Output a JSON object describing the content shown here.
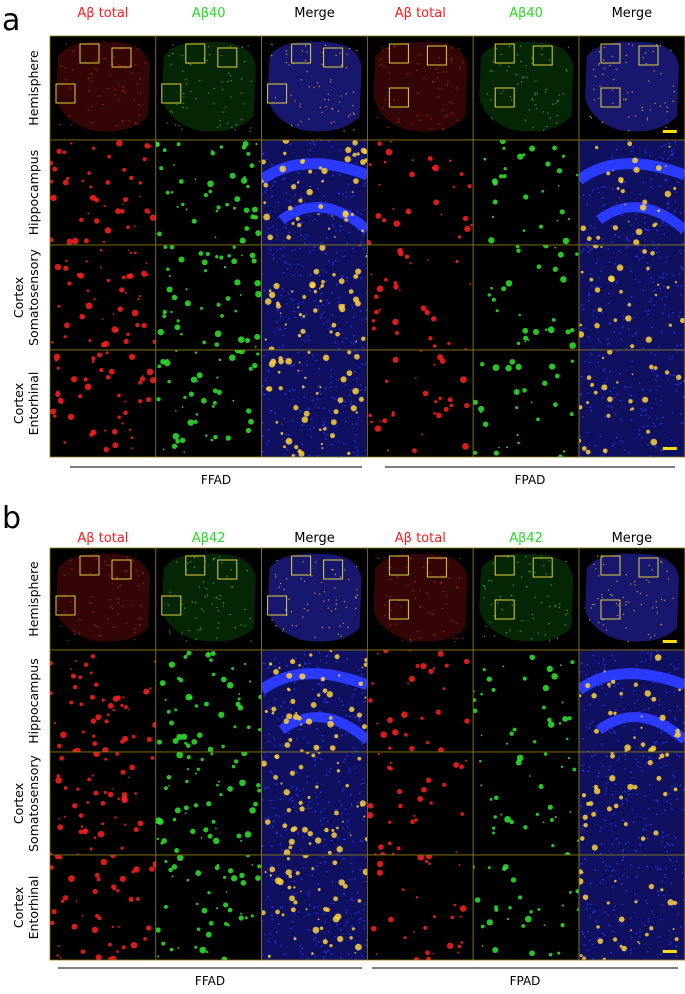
{
  "panels": [
    {
      "label": "a",
      "columns": [
        "Aβ total",
        "Aβ40",
        "Merge",
        "Aβ total",
        "Aβ40",
        "Merge"
      ],
      "rows": [
        [
          "Hemisphere"
        ],
        [
          "Hippocampus"
        ],
        [
          "Cortex",
          "Somatosensory"
        ],
        [
          "Cortex",
          "Entorhinal"
        ]
      ],
      "groups": [
        "FFAD",
        "FPAD"
      ]
    },
    {
      "label": "b",
      "columns": [
        "Aβ total",
        "Aβ42",
        "Merge",
        "Aβ total",
        "Aβ42",
        "Merge"
      ],
      "rows": [
        [
          "Hemisphere"
        ],
        [
          "Hippocampus"
        ],
        [
          "Cortex",
          "Somatosensory"
        ],
        [
          "Cortex",
          "Entorhinal"
        ]
      ],
      "groups": [
        "FFAD",
        "FPAD"
      ]
    }
  ]
}
